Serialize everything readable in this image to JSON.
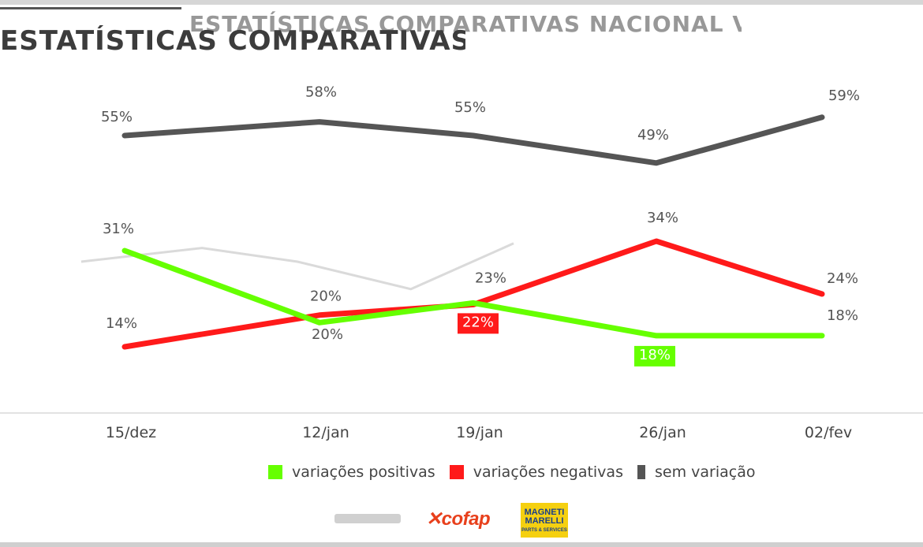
{
  "header": {
    "title": "ESTATÍSTICAS COMPARATIVAS NACIONAL VENDAS"
  },
  "chart_data": {
    "type": "line",
    "categories": [
      "15/dez",
      "12/jan",
      "19/jan",
      "26/jan",
      "02/fev"
    ],
    "series": [
      {
        "name": "variações positivas",
        "color": "#66ff00",
        "values": [
          31,
          20,
          23,
          18,
          18
        ]
      },
      {
        "name": "variações negativas",
        "color": "#ff1a1a",
        "values": [
          14,
          20,
          22,
          34,
          24
        ]
      },
      {
        "name": "sem variação",
        "color": "#555555",
        "values": [
          55,
          58,
          55,
          49,
          59
        ]
      }
    ],
    "xlabel": "",
    "ylabel": "",
    "value_suffix": "%",
    "grid": false,
    "legend": "bottom"
  },
  "footer": {
    "brand_cofap": "cofap",
    "brand_marelli_top": "MAGNETI MARELLI",
    "brand_marelli_bottom": "PARTS & SERVICES"
  }
}
